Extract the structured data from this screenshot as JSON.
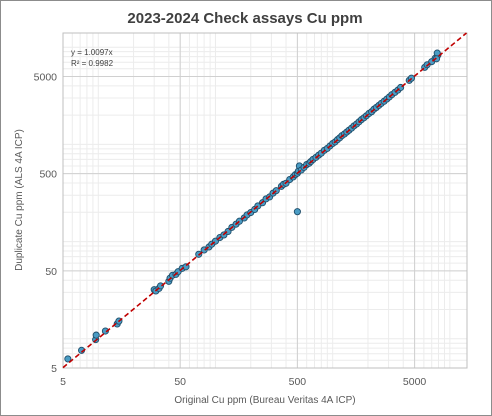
{
  "chart_data": {
    "type": "scatter",
    "title": "2023-2024 Check assays Cu ppm",
    "xlabel": "Original Cu ppm (Bureau Veritas 4A ICP)",
    "ylabel": "Duplicate Cu ppm (ALS 4A ICP)",
    "xscale": "log",
    "yscale": "log",
    "xlim": [
      5,
      14000
    ],
    "ylim": [
      5,
      14000
    ],
    "x_ticks": [
      "5",
      "50",
      "500",
      "5000"
    ],
    "y_ticks": [
      "5",
      "50",
      "500",
      "5000"
    ],
    "grid": true,
    "annotations": [
      "y = 1.0097x",
      "R² = 0.9982"
    ],
    "trendline": {
      "slope": 1.0097,
      "color": "#c00000",
      "style": "dashed"
    },
    "marker_color": "#4a9cc4",
    "series": [
      {
        "points": [
          [
            5.5,
            6.2
          ],
          [
            7.2,
            7.6
          ],
          [
            9.5,
            9.8
          ],
          [
            9.6,
            10.9
          ],
          [
            11.5,
            12.0
          ],
          [
            14.5,
            14.2
          ],
          [
            15.0,
            15.2
          ],
          [
            30,
            32
          ],
          [
            31,
            31
          ],
          [
            33,
            33
          ],
          [
            34,
            35
          ],
          [
            40,
            39
          ],
          [
            41,
            42
          ],
          [
            43,
            45
          ],
          [
            46,
            46
          ],
          [
            48,
            49
          ],
          [
            52,
            53
          ],
          [
            56,
            55
          ],
          [
            72,
            74
          ],
          [
            80,
            82
          ],
          [
            88,
            88
          ],
          [
            93,
            94
          ],
          [
            100,
            101
          ],
          [
            109,
            110
          ],
          [
            118,
            117
          ],
          [
            128,
            127
          ],
          [
            138,
            140
          ],
          [
            150,
            151
          ],
          [
            160,
            162
          ],
          [
            176,
            175
          ],
          [
            186,
            188
          ],
          [
            200,
            199
          ],
          [
            216,
            214
          ],
          [
            230,
            233
          ],
          [
            252,
            251
          ],
          [
            270,
            275
          ],
          [
            290,
            288
          ],
          [
            310,
            315
          ],
          [
            330,
            334
          ],
          [
            365,
            370
          ],
          [
            380,
            388
          ],
          [
            400,
            398
          ],
          [
            430,
            435
          ],
          [
            460,
            462
          ],
          [
            480,
            488
          ],
          [
            500,
            505
          ],
          [
            510,
            530
          ],
          [
            520,
            600
          ],
          [
            540,
            545
          ],
          [
            570,
            580
          ],
          [
            600,
            620
          ],
          [
            630,
            640
          ],
          [
            650,
            665
          ],
          [
            680,
            700
          ],
          [
            720,
            735
          ],
          [
            760,
            775
          ],
          [
            800,
            812
          ],
          [
            850,
            870
          ],
          [
            900,
            910
          ],
          [
            950,
            965
          ],
          [
            1000,
            1020
          ],
          [
            1050,
            1060
          ],
          [
            1100,
            1120
          ],
          [
            1150,
            1170
          ],
          [
            1200,
            1230
          ],
          [
            1260,
            1280
          ],
          [
            1320,
            1340
          ],
          [
            1380,
            1400
          ],
          [
            1450,
            1470
          ],
          [
            1520,
            1550
          ],
          [
            1600,
            1620
          ],
          [
            1680,
            1710
          ],
          [
            1760,
            1800
          ],
          [
            1850,
            1880
          ],
          [
            1940,
            1970
          ],
          [
            2040,
            2080
          ],
          [
            2150,
            2170
          ],
          [
            2250,
            2300
          ],
          [
            2360,
            2400
          ],
          [
            2480,
            2520
          ],
          [
            2600,
            2640
          ],
          [
            2750,
            2780
          ],
          [
            2900,
            2930
          ],
          [
            3050,
            3080
          ],
          [
            3200,
            3250
          ],
          [
            3400,
            3430
          ],
          [
            3600,
            3620
          ],
          [
            3800,
            3850
          ],
          [
            4500,
            4560
          ],
          [
            4700,
            4800
          ],
          [
            6100,
            6200
          ],
          [
            6400,
            6600
          ],
          [
            7000,
            7100
          ],
          [
            7500,
            7700
          ],
          [
            7900,
            8300
          ],
          [
            7800,
            8700
          ],
          [
            7700,
            7600
          ],
          [
            500,
            203
          ]
        ]
      }
    ]
  }
}
